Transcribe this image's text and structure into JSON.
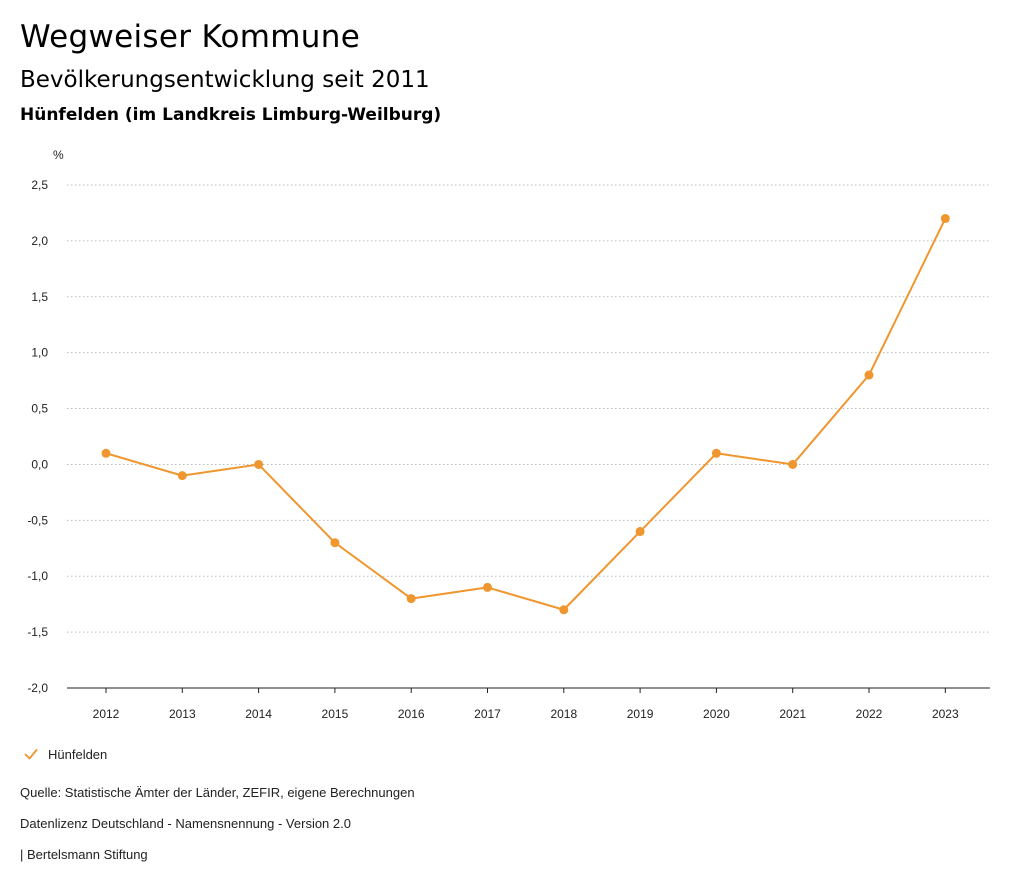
{
  "header": {
    "title": "Wegweiser Kommune",
    "subtitle": "Bevölkerungsentwicklung seit 2011",
    "region": "Hünfelden (im Landkreis Limburg-Weilburg)"
  },
  "legend": {
    "label": "Hünfelden",
    "icon": "check-mark-icon"
  },
  "footer": {
    "source": "Quelle: Statistische Ämter der Länder, ZEFIR, eigene Berechnungen",
    "license": "Datenlizenz Deutschland - Namensnennung - Version 2.0",
    "credit": "| Bertelsmann Stiftung"
  },
  "colors": {
    "series": "#f0962e",
    "grid": "#bbbbbb",
    "axis": "#222222"
  },
  "chart_data": {
    "type": "line",
    "ylabel": "%",
    "xlabel": "",
    "ylim": [
      -2.0,
      2.5
    ],
    "yticks": [
      2.5,
      2.0,
      1.5,
      1.0,
      0.5,
      0.0,
      -0.5,
      -1.0,
      -1.5,
      -2.0
    ],
    "ytick_labels": [
      "2,5",
      "2,0",
      "1,5",
      "1,0",
      "0,5",
      "0,0",
      "-0,5",
      "-1,0",
      "-1,5",
      "-2,0"
    ],
    "categories": [
      "2012",
      "2013",
      "2014",
      "2015",
      "2016",
      "2017",
      "2018",
      "2019",
      "2020",
      "2021",
      "2022",
      "2023"
    ],
    "grid": "horizontal dotted",
    "legend_position": "bottom-left",
    "series": [
      {
        "name": "Hünfelden",
        "values": [
          0.1,
          -0.1,
          0.0,
          -0.7,
          -1.2,
          -1.1,
          -1.3,
          -0.6,
          0.1,
          0.0,
          0.8,
          2.2
        ]
      }
    ]
  }
}
